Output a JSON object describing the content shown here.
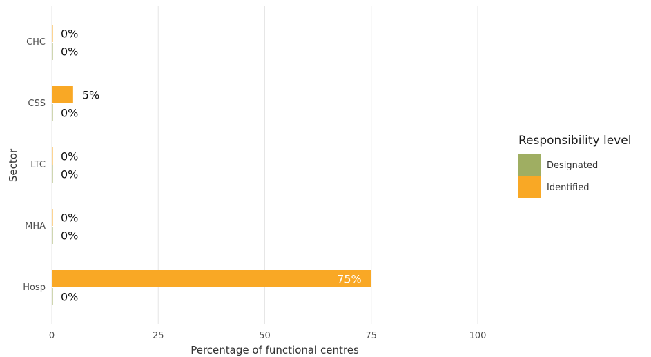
{
  "chart_data": {
    "type": "bar",
    "orientation": "horizontal",
    "xlabel": "Percentage of functional centres",
    "ylabel": "Sector",
    "xlim": [
      0,
      100
    ],
    "xticks": [
      0,
      25,
      50,
      75,
      100
    ],
    "grid": "vertical",
    "legend": {
      "title": "Responsibility level",
      "position": "right",
      "entries": [
        "Designated",
        "Identified"
      ]
    },
    "categories": [
      "CHC",
      "CSS",
      "LTC",
      "MHA",
      "Hosp"
    ],
    "series": [
      {
        "name": "Identified",
        "color": "#F9A825",
        "values": [
          0,
          5,
          0,
          0,
          75
        ],
        "labels": [
          "0%",
          "5%",
          "0%",
          "0%",
          "75%"
        ]
      },
      {
        "name": "Designated",
        "color": "#9FAE62",
        "values": [
          0,
          0,
          0,
          0,
          0
        ],
        "labels": [
          "0%",
          "0%",
          "0%",
          "0%",
          "0%"
        ]
      }
    ]
  }
}
